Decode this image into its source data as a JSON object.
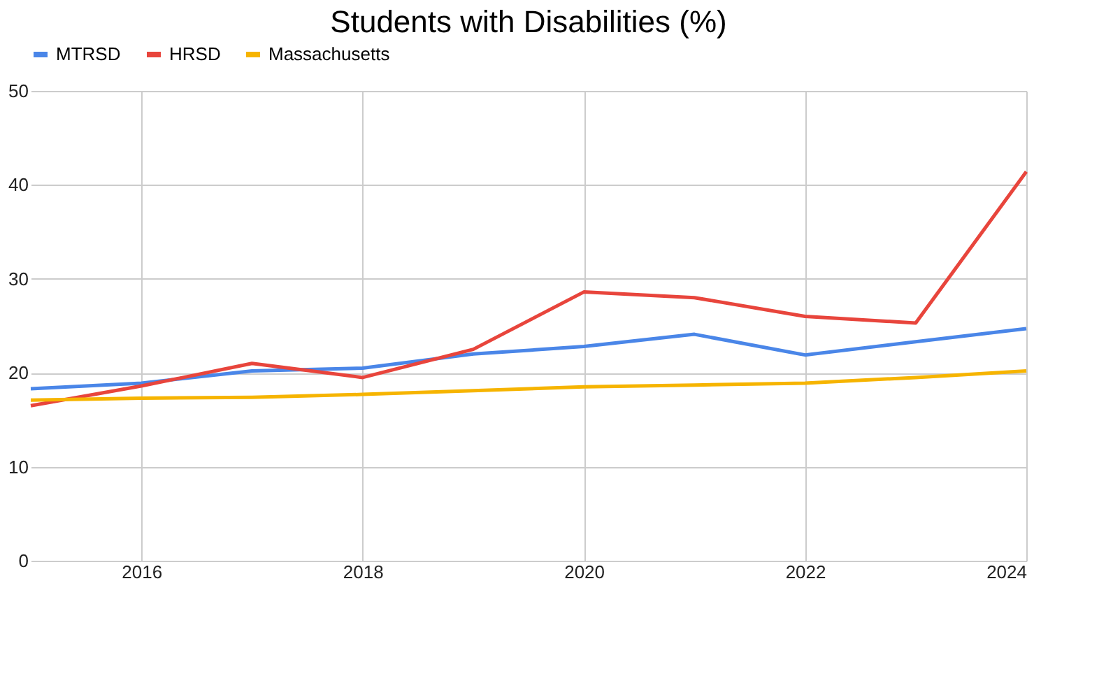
{
  "chart_data": {
    "type": "line",
    "title": "Students with Disabilities (%)",
    "x": [
      2015,
      2016,
      2017,
      2018,
      2019,
      2020,
      2021,
      2022,
      2023,
      2024
    ],
    "series": [
      {
        "name": "MTRSD",
        "color": "#4a86e8",
        "values": [
          18.3,
          18.9,
          20.2,
          20.5,
          22.0,
          22.8,
          24.1,
          21.9,
          23.3,
          24.7
        ]
      },
      {
        "name": "HRSD",
        "color": "#e8453c",
        "values": [
          16.5,
          18.6,
          21.0,
          19.5,
          22.5,
          28.6,
          28.0,
          26.0,
          25.3,
          41.4
        ]
      },
      {
        "name": "Massachusetts",
        "color": "#f6b400",
        "values": [
          17.1,
          17.3,
          17.4,
          17.7,
          18.1,
          18.5,
          18.7,
          18.9,
          19.5,
          20.2
        ]
      }
    ],
    "xlim": [
      2015,
      2024
    ],
    "xticks": [
      2016,
      2018,
      2020,
      2022,
      2024
    ],
    "ylim": [
      0,
      50
    ],
    "yticks": [
      0,
      10,
      20,
      30,
      40,
      50
    ],
    "grid": true,
    "legend": "top",
    "marker": "none",
    "line_style": "solid"
  }
}
